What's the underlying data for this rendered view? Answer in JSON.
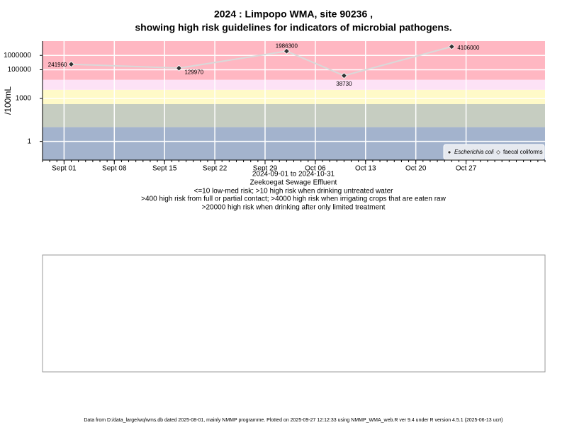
{
  "chart_data": {
    "type": "line",
    "title": "2024 : Limpopo WMA, site 90236 ,",
    "subtitle": "showing high risk guidelines for indicators of microbial pathogens.",
    "ylabel": "/100mL",
    "date_range": "2024-09-01 to 2024-10-31",
    "site": "Zeekoegat Sewage Effluent",
    "notes": [
      "<=10 low-med risk; >10 high risk when drinking untreated water",
      ">400 high risk from full or partial contact; >4000 high risk when irrigating crops that are eaten raw",
      ">20000 high risk when drinking after only limited treatment"
    ],
    "x": [
      "2024-09-02",
      "2024-09-17",
      "2024-10-02",
      "2024-10-10",
      "2024-10-25"
    ],
    "series": [
      {
        "name": "Escherichia coli",
        "color": "#333333",
        "line_color": "#d9d9d9",
        "values": [
          241960,
          129970,
          1986300,
          38730,
          4106000
        ]
      },
      {
        "name": "faecal coliforms",
        "color": "#ffffff",
        "values": [
          null,
          null,
          null,
          null,
          null
        ]
      }
    ],
    "xlim": [
      "2024-08-29",
      "2024-11-07"
    ],
    "xticks": [
      {
        "value": "2024-09-01",
        "label": "Sept 01"
      },
      {
        "value": "2024-09-08",
        "label": "Sept 08"
      },
      {
        "value": "2024-09-15",
        "label": "Sept 15"
      },
      {
        "value": "2024-09-22",
        "label": "Sept 22"
      },
      {
        "value": "2024-09-29",
        "label": "Sept 29"
      },
      {
        "value": "2024-10-06",
        "label": "Oct 06"
      },
      {
        "value": "2024-10-13",
        "label": "Oct 13"
      },
      {
        "value": "2024-10-20",
        "label": "Oct 20"
      },
      {
        "value": "2024-10-27",
        "label": "Oct 27"
      }
    ],
    "ylim": [
      0.05,
      10000000
    ],
    "yticks": [
      1,
      1000,
      100000,
      1000000
    ],
    "log_y": true,
    "grid": true,
    "legend": "bottom-right",
    "risk_thresholds": [
      10,
      400,
      4000,
      20000
    ],
    "risk_colors": [
      "#a3b3cd",
      "#c6cdc1",
      "#fffac8",
      "#fde2f6",
      "#ffb7c2"
    ]
  },
  "footer": "Data from D:/data_large/wq/wms.db dated 2025-08-01, mainly NMMP programme. Plotted on 2025-09-27 12:12:33 using NMMP_WMA_web.R ver 9.4 under R version 4.5.1 (2025-06-13 ucrt)"
}
